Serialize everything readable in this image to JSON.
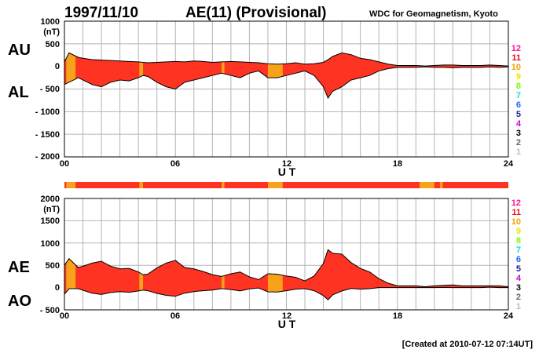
{
  "header": {
    "date": "1997/11/10",
    "title": "AE(11) (Provisional)",
    "organization": "WDC for Geomagnetism, Kyoto"
  },
  "footer": {
    "created": "[Created at 2010-07-12 07:14UT]"
  },
  "colors": {
    "fill_main": "#ff3322",
    "fill_low_coverage": "#f6a21a",
    "outline": "#000000",
    "grid": "#b4b4b4"
  },
  "station_legend": [
    {
      "label": "12",
      "color": "#ff1493"
    },
    {
      "label": "11",
      "color": "#e8101e"
    },
    {
      "label": "10",
      "color": "#f5a000"
    },
    {
      "label": "9",
      "color": "#e6e600"
    },
    {
      "label": "8",
      "color": "#7cfc00"
    },
    {
      "label": "7",
      "color": "#00e5e5"
    },
    {
      "label": "6",
      "color": "#1e64ff"
    },
    {
      "label": "5",
      "color": "#1a1aa0"
    },
    {
      "label": "4",
      "color": "#cc00cc"
    },
    {
      "label": "3",
      "color": "#000000"
    },
    {
      "label": "2",
      "color": "#666666"
    },
    {
      "label": "1",
      "color": "#bbbbbb"
    }
  ],
  "chart_data": [
    {
      "type": "area",
      "name": "AU-AL",
      "side_labels": {
        "top": "AU",
        "bottom": "AL"
      },
      "ylabel": "(nT)",
      "xlabel": "U T",
      "xlim": [
        0,
        24
      ],
      "ylim": [
        -2000,
        1000
      ],
      "xticks": [
        "00",
        "06",
        "12",
        "18",
        "24"
      ],
      "yticks": [
        "1000",
        "500",
        "0",
        "- 500",
        "- 1000",
        "- 1500",
        "- 2000"
      ],
      "x": [
        0,
        0.25,
        0.5,
        0.75,
        1,
        1.5,
        2,
        2.5,
        3,
        3.5,
        4,
        4.25,
        4.5,
        5,
        5.5,
        6,
        6.5,
        7,
        7.5,
        8,
        8.5,
        9,
        9.5,
        10,
        10.5,
        11,
        11.5,
        12,
        12.5,
        13,
        13.5,
        14,
        14.25,
        14.5,
        15,
        15.5,
        16,
        16.5,
        17,
        17.5,
        18,
        18.5,
        19,
        19.5,
        20,
        20.5,
        21,
        21.5,
        22,
        22.5,
        23,
        23.5,
        24
      ],
      "series": [
        {
          "name": "AU",
          "values": [
            100,
            300,
            250,
            200,
            180,
            150,
            140,
            130,
            120,
            110,
            100,
            90,
            80,
            90,
            100,
            110,
            100,
            120,
            110,
            90,
            100,
            110,
            100,
            90,
            80,
            60,
            50,
            60,
            80,
            50,
            60,
            90,
            150,
            220,
            300,
            260,
            180,
            150,
            100,
            50,
            20,
            20,
            20,
            10,
            20,
            30,
            30,
            20,
            20,
            20,
            30,
            20,
            10
          ]
        },
        {
          "name": "AL",
          "values": [
            -400,
            -350,
            -300,
            -250,
            -300,
            -400,
            -450,
            -350,
            -300,
            -320,
            -250,
            -200,
            -220,
            -350,
            -450,
            -500,
            -350,
            -300,
            -250,
            -200,
            -150,
            -200,
            -250,
            -150,
            -100,
            -250,
            -250,
            -200,
            -150,
            -100,
            -200,
            -450,
            -700,
            -550,
            -450,
            -300,
            -250,
            -200,
            -100,
            -50,
            -20,
            -20,
            -20,
            -10,
            -20,
            -20,
            -30,
            -20,
            -20,
            -20,
            -10,
            -20,
            -10
          ]
        }
      ],
      "low_coverage_ut": [
        [
          0.1,
          0.6
        ],
        [
          4.05,
          4.25
        ],
        [
          8.5,
          8.65
        ],
        [
          11.0,
          11.8
        ]
      ]
    },
    {
      "type": "bar",
      "name": "coverage-strip",
      "xlim": [
        0,
        24
      ],
      "low_coverage_ut": [
        [
          0.1,
          0.6
        ],
        [
          4.05,
          4.25
        ],
        [
          8.5,
          8.65
        ],
        [
          11.0,
          11.8
        ],
        [
          19.2,
          20.0
        ],
        [
          20.3,
          20.45
        ]
      ]
    },
    {
      "type": "area",
      "name": "AE-AO",
      "side_labels": {
        "top": "AE",
        "bottom": "AO"
      },
      "ylabel": "(nT)",
      "xlabel": "U T",
      "xlim": [
        0,
        24
      ],
      "ylim": [
        -500,
        2000
      ],
      "xticks": [
        "00",
        "06",
        "12",
        "18",
        "24"
      ],
      "yticks": [
        "2000",
        "1500",
        "1000",
        "500",
        "0",
        "- 500"
      ],
      "x": [
        0,
        0.25,
        0.5,
        0.75,
        1,
        1.5,
        2,
        2.5,
        3,
        3.5,
        4,
        4.25,
        4.5,
        5,
        5.5,
        6,
        6.5,
        7,
        7.5,
        8,
        8.5,
        9,
        9.5,
        10,
        10.5,
        11,
        11.5,
        12,
        12.5,
        13,
        13.5,
        14,
        14.25,
        14.5,
        15,
        15.5,
        16,
        16.5,
        17,
        17.5,
        18,
        18.5,
        19,
        19.5,
        20,
        20.5,
        21,
        21.5,
        22,
        22.5,
        23,
        23.5,
        24
      ],
      "series": [
        {
          "name": "AE",
          "values": [
            500,
            650,
            550,
            450,
            480,
            550,
            590,
            480,
            420,
            430,
            350,
            290,
            300,
            440,
            550,
            610,
            450,
            420,
            360,
            290,
            250,
            310,
            350,
            240,
            180,
            310,
            300,
            260,
            230,
            150,
            260,
            540,
            850,
            770,
            750,
            560,
            430,
            350,
            200,
            100,
            40,
            40,
            40,
            20,
            40,
            50,
            60,
            40,
            40,
            40,
            40,
            40,
            20
          ]
        },
        {
          "name": "AO",
          "values": [
            -150,
            -25,
            -25,
            -25,
            -60,
            -125,
            -155,
            -110,
            -90,
            -105,
            -75,
            -55,
            -70,
            -130,
            -175,
            -195,
            -125,
            -90,
            -70,
            -55,
            -25,
            -45,
            -75,
            -30,
            -10,
            -95,
            -100,
            -70,
            -35,
            -25,
            -70,
            -180,
            -275,
            -165,
            -75,
            -20,
            -35,
            -25,
            0,
            0,
            0,
            0,
            0,
            0,
            0,
            5,
            0,
            0,
            0,
            0,
            10,
            0,
            0
          ]
        }
      ],
      "low_coverage_ut": [
        [
          0.1,
          0.6
        ],
        [
          4.05,
          4.25
        ],
        [
          8.5,
          8.65
        ],
        [
          11.0,
          11.8
        ]
      ]
    }
  ]
}
